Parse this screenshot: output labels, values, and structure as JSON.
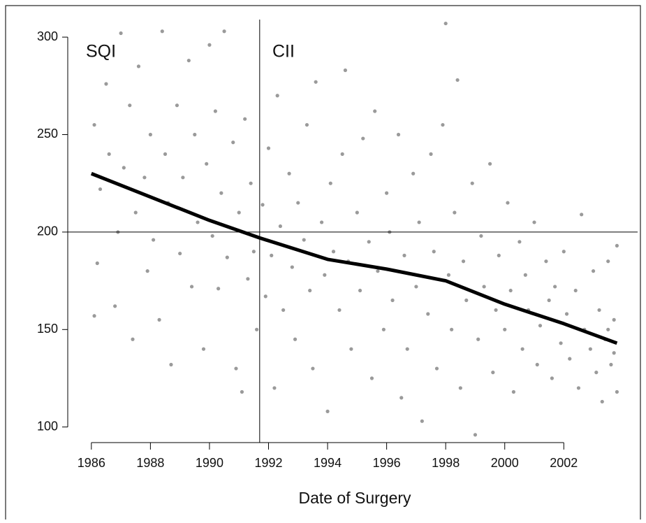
{
  "chart_data": {
    "type": "scatter",
    "x_label": "Date of Surgery",
    "annotations": [
      "SQI",
      "CII"
    ],
    "xlim": [
      1985.2,
      2004.5
    ],
    "ylim": [
      92,
      309
    ],
    "xticks": [
      1986,
      1988,
      1990,
      1992,
      1994,
      1996,
      1998,
      2000,
      2002
    ],
    "yticks": [
      100,
      150,
      200,
      250,
      300
    ],
    "hline": 200,
    "vline": 1991.7,
    "points": {
      "color": "#9a9a9a",
      "x": [
        1986.1,
        1986.1,
        1986.2,
        1986.3,
        1986.5,
        1986.6,
        1986.8,
        1986.9,
        1987.0,
        1987.1,
        1987.3,
        1987.4,
        1987.5,
        1987.6,
        1987.8,
        1987.9,
        1988.0,
        1988.1,
        1988.3,
        1988.4,
        1988.5,
        1988.6,
        1988.7,
        1988.9,
        1989.0,
        1989.1,
        1989.3,
        1989.4,
        1989.5,
        1989.6,
        1989.8,
        1989.9,
        1990.0,
        1990.1,
        1990.2,
        1990.3,
        1990.4,
        1990.5,
        1990.6,
        1990.8,
        1990.9,
        1991.0,
        1991.1,
        1991.2,
        1991.3,
        1991.4,
        1991.5,
        1991.6,
        1991.8,
        1991.9,
        1992.0,
        1992.1,
        1992.2,
        1992.3,
        1992.4,
        1992.5,
        1992.7,
        1992.8,
        1992.9,
        1993.0,
        1993.2,
        1993.3,
        1993.4,
        1993.5,
        1993.6,
        1993.8,
        1993.9,
        1994.0,
        1994.1,
        1994.2,
        1994.4,
        1994.5,
        1994.6,
        1994.7,
        1994.8,
        1995.0,
        1995.1,
        1995.2,
        1995.4,
        1995.5,
        1995.6,
        1995.7,
        1995.9,
        1996.0,
        1996.1,
        1996.2,
        1996.4,
        1996.5,
        1996.6,
        1996.7,
        1996.9,
        1997.0,
        1997.1,
        1997.2,
        1997.4,
        1997.5,
        1997.6,
        1997.7,
        1997.9,
        1998.0,
        1998.1,
        1998.2,
        1998.3,
        1998.4,
        1998.5,
        1998.6,
        1998.7,
        1998.9,
        1999.0,
        1999.1,
        1999.2,
        1999.3,
        1999.5,
        1999.6,
        1999.7,
        1999.8,
        2000.0,
        2000.1,
        2000.2,
        2000.3,
        2000.5,
        2000.6,
        2000.7,
        2000.8,
        2001.0,
        2001.1,
        2001.2,
        2001.4,
        2001.5,
        2001.6,
        2001.7,
        2001.9,
        2002.0,
        2002.1,
        2002.2,
        2002.4,
        2002.5,
        2002.6,
        2002.7,
        2002.9,
        2003.0,
        2003.1,
        2003.2,
        2003.3,
        2003.4,
        2003.5,
        2003.6,
        2003.7,
        2003.8,
        2003.8,
        2003.7,
        2003.5
      ],
      "y": [
        255,
        157,
        184,
        222,
        276,
        240,
        162,
        200,
        302,
        233,
        265,
        145,
        210,
        285,
        228,
        180,
        250,
        196,
        155,
        303,
        240,
        215,
        132,
        265,
        189,
        228,
        288,
        172,
        250,
        205,
        140,
        235,
        296,
        198,
        262,
        171,
        220,
        303,
        187,
        246,
        130,
        210,
        118,
        258,
        176,
        225,
        190,
        150,
        214,
        167,
        243,
        188,
        120,
        270,
        203,
        160,
        230,
        182,
        145,
        215,
        196,
        255,
        170,
        130,
        277,
        205,
        178,
        108,
        225,
        190,
        160,
        240,
        283,
        185,
        140,
        210,
        170,
        248,
        195,
        125,
        262,
        180,
        150,
        220,
        200,
        165,
        250,
        115,
        188,
        140,
        230,
        172,
        205,
        103,
        158,
        240,
        190,
        130,
        255,
        307,
        178,
        150,
        210,
        278,
        120,
        185,
        165,
        225,
        96,
        145,
        198,
        172,
        235,
        128,
        160,
        188,
        150,
        215,
        170,
        118,
        195,
        140,
        178,
        160,
        205,
        132,
        152,
        185,
        165,
        125,
        172,
        143,
        190,
        158,
        135,
        170,
        120,
        209,
        150,
        140,
        180,
        128,
        160,
        113,
        145,
        185,
        132,
        155,
        118,
        193,
        138,
        150
      ]
    },
    "smooth": {
      "color": "#000000",
      "x": [
        1986,
        1988,
        1990,
        1991.7,
        1994,
        1996,
        1998,
        2000,
        2002,
        2003.8
      ],
      "y": [
        230,
        218,
        206,
        197,
        186,
        181,
        175,
        163,
        153,
        143
      ]
    }
  }
}
